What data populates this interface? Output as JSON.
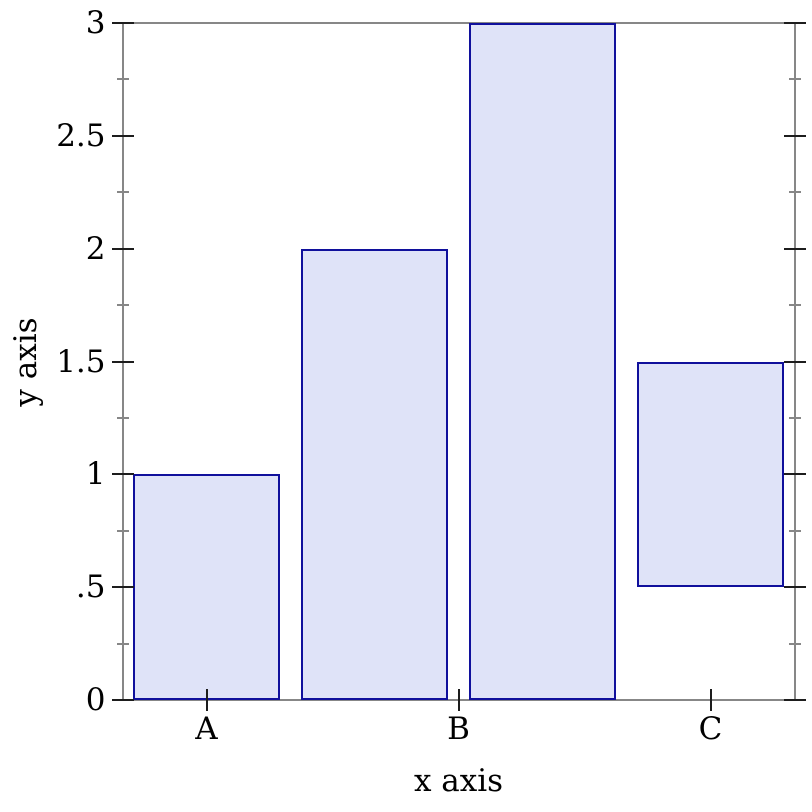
{
  "chart_data": {
    "type": "bar",
    "title": "",
    "xlabel": "x axis",
    "ylabel": "y axis",
    "x_range": [
      0,
      4
    ],
    "y_range": [
      0,
      3
    ],
    "grid": "off",
    "legend": "none",
    "bar_width_units": 0.875,
    "bars": [
      {
        "category": "A",
        "x_center": 0.5,
        "y_start": 0,
        "y_end": 1
      },
      {
        "category": "B",
        "x_center": 1.5,
        "y_start": 0,
        "y_end": 2
      },
      {
        "category": "B",
        "x_center": 2.5,
        "y_start": 0,
        "y_end": 3
      },
      {
        "category": "C",
        "x_center": 3.5,
        "y_start": 0.5,
        "y_end": 1.5
      }
    ],
    "x_ticks": [
      {
        "pos": 0.5,
        "label": "A"
      },
      {
        "pos": 2,
        "label": "B"
      },
      {
        "pos": 3.5,
        "label": "C"
      }
    ],
    "y_major_ticks": [
      {
        "pos": 0,
        "label": "0"
      },
      {
        "pos": 0.5,
        "label": ".5"
      },
      {
        "pos": 1,
        "label": "1"
      },
      {
        "pos": 1.5,
        "label": "1.5"
      },
      {
        "pos": 2,
        "label": "2"
      },
      {
        "pos": 2.5,
        "label": "2.5"
      },
      {
        "pos": 3,
        "label": "3"
      }
    ],
    "y_minor_ticks": [
      0.25,
      0.75,
      1.25,
      1.75,
      2.25,
      2.75
    ],
    "colors": {
      "bar_fill": "#dfe3f8",
      "bar_border": "#10109c",
      "axis": "#878787",
      "major_tick": "#1d1d1d",
      "minor_tick": "#878787",
      "text": "#000000"
    }
  }
}
